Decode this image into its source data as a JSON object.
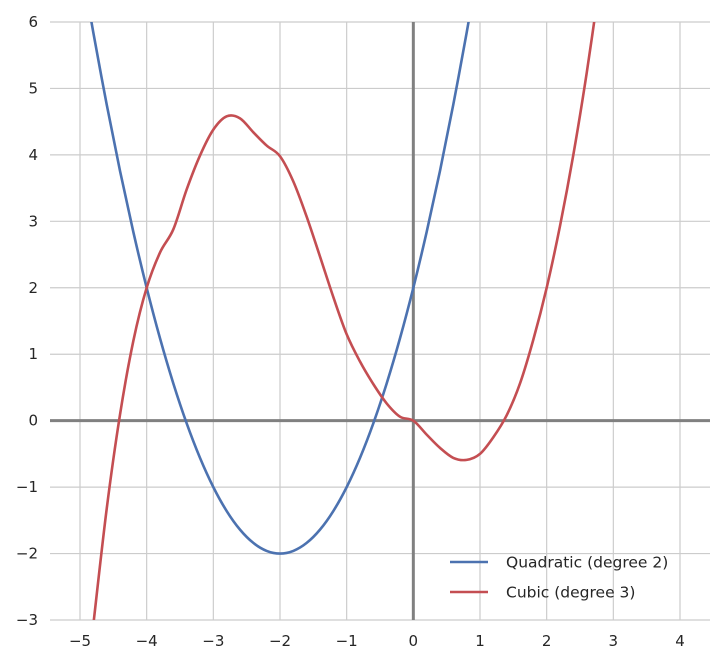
{
  "chart_data": {
    "type": "line",
    "title": "",
    "xlabel": "",
    "ylabel": "",
    "xlim": [
      -5.45,
      4.45
    ],
    "ylim": [
      -3,
      6
    ],
    "xticks": [
      -5,
      -4,
      -3,
      -2,
      -1,
      0,
      1,
      2,
      3,
      4
    ],
    "yticks": [
      -3,
      -2,
      -1,
      0,
      1,
      2,
      3,
      4,
      5,
      6
    ],
    "xtick_labels": [
      "−5",
      "−4",
      "−3",
      "−2",
      "−1",
      "0",
      "1",
      "2",
      "3",
      "4"
    ],
    "ytick_labels": [
      "−3",
      "−2",
      "−1",
      "0",
      "1",
      "2",
      "3",
      "4",
      "5",
      "6"
    ],
    "grid": true,
    "legend_position": "lower-right",
    "axis_line_color": "#808080",
    "series": [
      {
        "name": "Quadratic (degree 2)",
        "color": "#4c72b0",
        "x": [
          -4.9,
          -4.8,
          -4.6,
          -4.4,
          -4.2,
          -4.0,
          -3.8,
          -3.6,
          -3.4,
          -3.2,
          -3.0,
          -2.8,
          -2.6,
          -2.4,
          -2.2,
          -2.0,
          -1.8,
          -1.6,
          -1.4,
          -1.2,
          -1.0,
          -0.8,
          -0.6,
          -0.4,
          -0.2,
          0.0,
          0.2,
          0.4,
          0.6,
          0.8,
          0.9
        ],
        "y": [
          6.41,
          5.84,
          4.76,
          3.76,
          2.84,
          2.0,
          1.24,
          0.56,
          -0.04,
          -0.56,
          -1.0,
          -1.36,
          -1.64,
          -1.84,
          -1.96,
          -2.0,
          -1.96,
          -1.84,
          -1.64,
          -1.36,
          -1.0,
          -0.56,
          -0.04,
          0.56,
          1.24,
          2.0,
          2.84,
          3.76,
          4.76,
          5.84,
          6.41
        ]
      },
      {
        "name": "Cubic (degree 3)",
        "color": "#c44e52",
        "x": [
          -4.8,
          -4.6,
          -4.4,
          -4.2,
          -4.0,
          -3.8,
          -3.6,
          -3.4,
          -3.2,
          -3.0,
          -2.8,
          -2.6,
          -2.4,
          -2.2,
          -2.0,
          -1.8,
          -1.6,
          -1.4,
          -1.2,
          -1.0,
          -0.8,
          -0.6,
          -0.4,
          -0.2,
          0.0,
          0.2,
          0.4,
          0.6,
          0.8,
          1.0,
          1.2,
          1.4,
          1.6,
          1.8,
          2.0,
          2.2,
          2.4,
          2.6,
          2.8
        ],
        "y": [
          -3.07,
          -1.33,
          0.09,
          1.2,
          2.0,
          2.53,
          2.88,
          3.48,
          3.99,
          4.38,
          4.58,
          4.55,
          4.34,
          4.14,
          3.98,
          3.6,
          3.07,
          2.47,
          1.86,
          1.3,
          0.89,
          0.55,
          0.26,
          0.06,
          0.0,
          -0.21,
          -0.41,
          -0.56,
          -0.59,
          -0.5,
          -0.25,
          0.08,
          0.56,
          1.22,
          2.0,
          2.93,
          4.0,
          5.23,
          6.62
        ]
      }
    ]
  }
}
